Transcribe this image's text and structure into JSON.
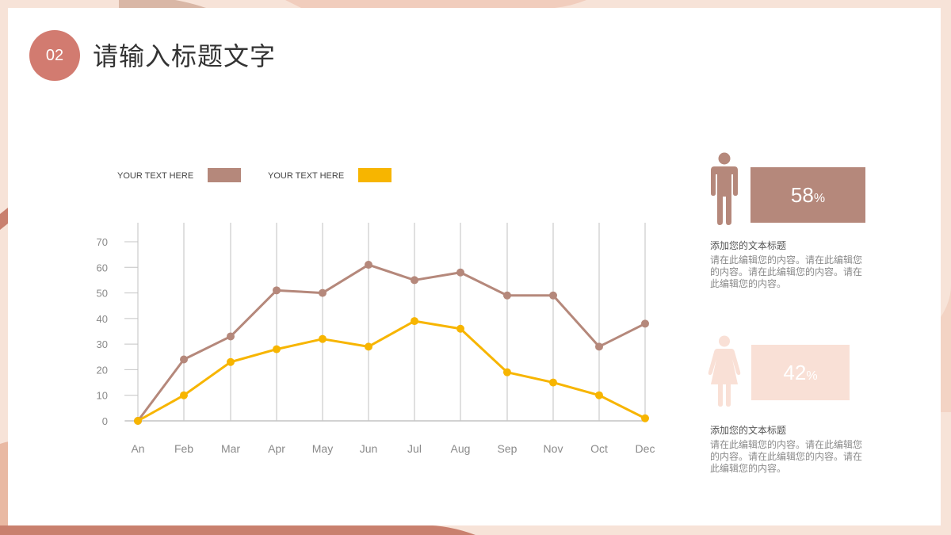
{
  "header": {
    "badge": "02",
    "title": "请输入标题文字"
  },
  "colors": {
    "series1": "#b5887b",
    "series2": "#f7b500",
    "accent": "#d27b70",
    "male_box": "#b5887b",
    "female_box": "#f9e0d6"
  },
  "chart_data": {
    "type": "line",
    "categories": [
      "An",
      "Feb",
      "Mar",
      "Apr",
      "May",
      "Jun",
      "Jul",
      "Aug",
      "Sep",
      "Nov",
      "Oct",
      "Dec"
    ],
    "series": [
      {
        "name": "YOUR TEXT HERE",
        "values": [
          0,
          24,
          33,
          51,
          50,
          61,
          55,
          58,
          49,
          49,
          29,
          38
        ]
      },
      {
        "name": "YOUR TEXT HERE",
        "values": [
          0,
          10,
          23,
          28,
          32,
          29,
          39,
          36,
          19,
          15,
          10,
          1
        ]
      }
    ],
    "yticks": [
      0,
      10,
      20,
      30,
      40,
      50,
      60,
      70
    ],
    "ylim": [
      0,
      70
    ],
    "grid": "vertical",
    "legend": "top-left"
  },
  "stats": [
    {
      "icon": "male-icon",
      "value": "58",
      "unit": "%",
      "heading": "添加您的文本标题",
      "body": "请在此编辑您的内容。请在此编辑您的内容。请在此编辑您的内容。请在此编辑您的内容。"
    },
    {
      "icon": "female-icon",
      "value": "42",
      "unit": "%",
      "heading": "添加您的文本标题",
      "body": "请在此编辑您的内容。请在此编辑您的内容。请在此编辑您的内容。请在此编辑您的内容。"
    }
  ]
}
